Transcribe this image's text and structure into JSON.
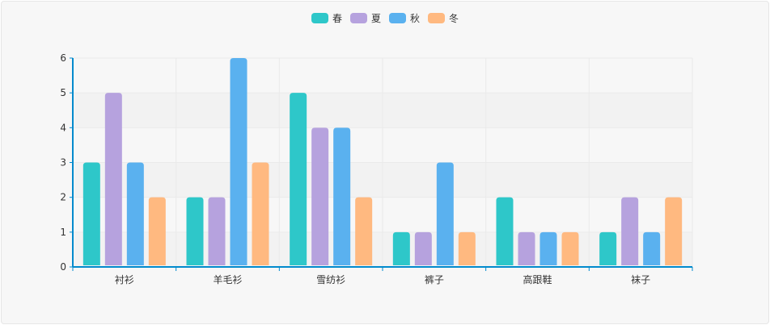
{
  "chart_data": {
    "type": "bar",
    "title": "",
    "xlabel": "",
    "ylabel": "",
    "categories": [
      "衬衫",
      "羊毛衫",
      "雪纺衫",
      "裤子",
      "高跟鞋",
      "袜子"
    ],
    "series": [
      {
        "name": "春",
        "color": "#2ec7c9",
        "values": [
          3,
          2,
          5,
          1,
          2,
          1
        ]
      },
      {
        "name": "夏",
        "color": "#b6a2de",
        "values": [
          5,
          2,
          4,
          1,
          1,
          2
        ]
      },
      {
        "name": "秋",
        "color": "#5ab1ef",
        "values": [
          3,
          6,
          4,
          3,
          1,
          1
        ]
      },
      {
        "name": "冬",
        "color": "#ffb980",
        "values": [
          2,
          3,
          2,
          1,
          1,
          2
        ]
      }
    ],
    "ylim": [
      0,
      6
    ],
    "yticks": [
      0,
      1,
      2,
      3,
      4,
      5,
      6
    ],
    "legend_position": "top-center",
    "grid": true,
    "axis_color": "#008acd"
  }
}
